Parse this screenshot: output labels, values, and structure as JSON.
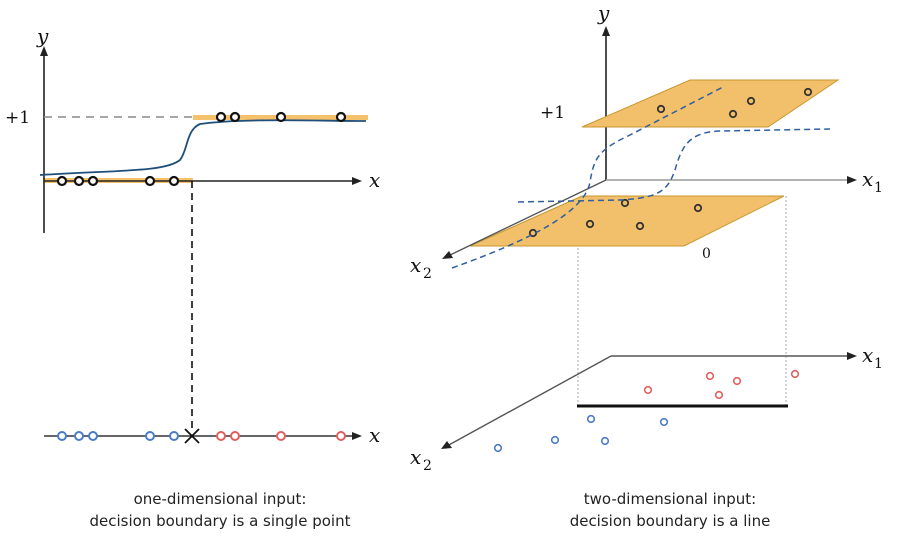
{
  "left_panel": {
    "y_label": "y",
    "x_label": "x",
    "plus_one_label": "+1",
    "bottom_x_label": "x",
    "caption_line1": "one-dimensional input:",
    "caption_line2": "decision boundary is a single point"
  },
  "right_panel": {
    "y_label": "y",
    "plus_one_label": "+1",
    "zero_label": "0",
    "x1_label": "x",
    "x1_sub": "1",
    "x2_label": "x",
    "x2_sub": "2",
    "bottom_x1_label": "x",
    "bottom_x1_sub": "1",
    "bottom_x2_label": "x",
    "bottom_x2_sub": "2",
    "caption_line1": "two-dimensional input:",
    "caption_line2": "decision boundary is a line"
  },
  "colors": {
    "band": "#f5c26b",
    "plane_fill": "#f2c06a",
    "curve": "#1f4e79",
    "dashed_curve": "#2f5f9e",
    "negative_point": "#4a7cc7",
    "positive_point": "#e06060",
    "axis": "#222222"
  }
}
